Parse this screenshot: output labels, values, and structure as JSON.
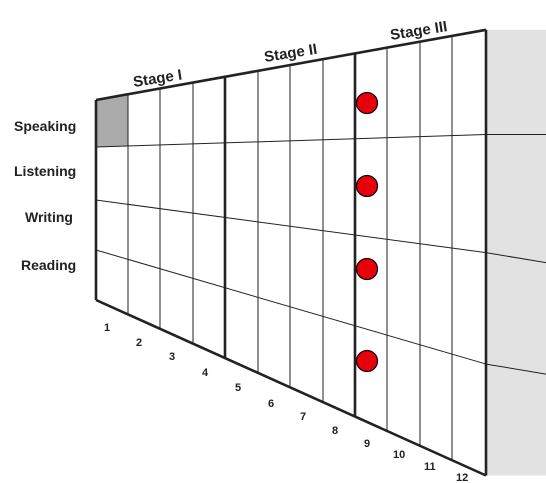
{
  "stages": [
    {
      "label": "Stage I",
      "columns": [
        1,
        4
      ]
    },
    {
      "label": "Stage II",
      "columns": [
        5,
        8
      ]
    },
    {
      "label": "Stage III",
      "columns": [
        9,
        12
      ]
    }
  ],
  "skills": [
    "Speaking",
    "Listening",
    "Writing",
    "Reading"
  ],
  "column_numbers": [
    "1",
    "2",
    "3",
    "4",
    "5",
    "6",
    "7",
    "8",
    "9",
    "10",
    "11",
    "12"
  ],
  "shaded_cell": {
    "skill": "Speaking",
    "column": 1
  },
  "markers": [
    {
      "skill": "Speaking",
      "boundary_after_column": 8
    },
    {
      "skill": "Listening",
      "boundary_after_column": 8
    },
    {
      "skill": "Writing",
      "boundary_after_column": 8
    },
    {
      "skill": "Reading",
      "boundary_after_column": 8
    }
  ],
  "colors": {
    "grid_line": "#222222",
    "shaded_cell": "#aaaaaa",
    "end_panel": "#e2e2e2",
    "marker": "#e8000b",
    "marker_outline": "#000000"
  }
}
